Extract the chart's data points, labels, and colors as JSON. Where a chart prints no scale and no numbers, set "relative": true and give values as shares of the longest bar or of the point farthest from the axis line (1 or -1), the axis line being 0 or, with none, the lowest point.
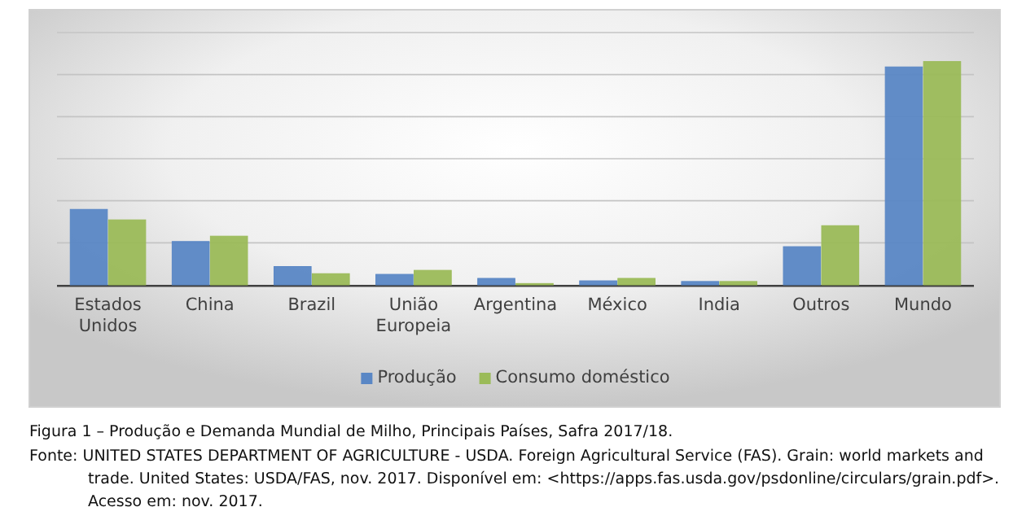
{
  "chart_data": {
    "type": "bar",
    "relative": true,
    "grid": true,
    "legend": "bottom",
    "title": "Figura 1 – Produção e Demanda Mundial de Milho, Principais Países, Safra 2017/18.",
    "annotations": [
      "Fonte: UNITED STATES DEPARTMENT OF AGRICULTURE - USDA. Foreign Agricultural Service (FAS). Grain: world markets and trade. United States: USDA/FAS, nov. 2017. Disponível em: <https://apps.fas.usda.gov/psdonline/circulars/grain.pdf>. Acesso em: nov. 2017."
    ],
    "categories": [
      "Estados Unidos",
      "China",
      "Brazil",
      "União Europeia",
      "Argentina",
      "México",
      "India",
      "Outros",
      "Mundo"
    ],
    "series": [
      {
        "name": "Produção",
        "color": "#5a87c5",
        "values": [
          0.338,
          0.194,
          0.082,
          0.047,
          0.029,
          0.018,
          0.015,
          0.171,
          0.976
        ]
      },
      {
        "name": "Consumo doméstico",
        "color": "#9bbb59",
        "values": [
          0.291,
          0.218,
          0.05,
          0.065,
          0.006,
          0.029,
          0.015,
          0.265,
          1
        ]
      }
    ]
  }
}
